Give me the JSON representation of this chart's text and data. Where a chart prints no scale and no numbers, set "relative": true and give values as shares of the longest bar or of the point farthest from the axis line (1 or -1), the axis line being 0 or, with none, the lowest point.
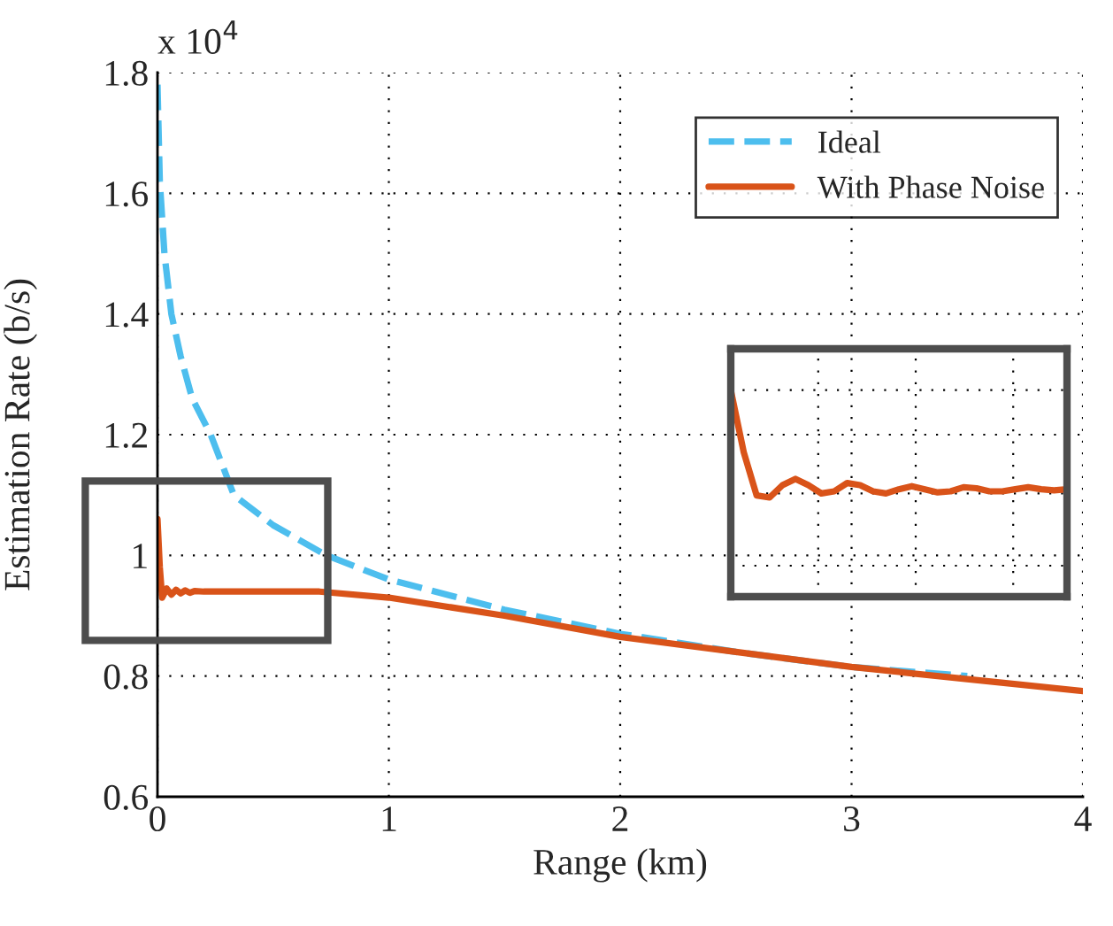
{
  "chart_data": [
    {
      "type": "line",
      "xlabel": "Range (km)",
      "ylabel": "Estimation Rate (b/s)",
      "annotations": [
        "x 10$^{4}$"
      ],
      "xlim": [
        0,
        4
      ],
      "xticks": [
        0,
        1,
        2,
        3,
        4
      ],
      "ylim": [
        0.6,
        1.8
      ],
      "yticks": [
        0.6,
        0.8,
        1,
        1.2,
        1.4,
        1.6,
        1.8
      ],
      "grid": true,
      "legend": "top right",
      "series": [
        {
          "name": "Ideal",
          "color": "#4dbeee",
          "line_style": "dashed",
          "x": [
            0,
            0.01,
            0.03,
            0.06,
            0.1,
            0.15,
            0.23,
            0.33,
            0.5,
            0.73,
            1.0,
            1.5,
            2.0,
            2.5,
            3.0,
            3.5
          ],
          "values": [
            1.78,
            1.62,
            1.5,
            1.4,
            1.33,
            1.26,
            1.2,
            1.1,
            1.05,
            1.0,
            0.96,
            0.91,
            0.87,
            0.84,
            0.815,
            0.8
          ]
        },
        {
          "name": "With Phase Noise",
          "color": "#d95319",
          "line_style": "solid",
          "x": [
            0,
            0.01,
            0.02,
            0.04,
            0.06,
            0.08,
            0.1,
            0.12,
            0.14,
            0.16,
            0.2,
            0.3,
            0.5,
            0.7,
            1.0,
            1.5,
            2.0,
            2.5,
            3.0,
            3.5,
            4.0
          ],
          "values": [
            1.06,
            0.98,
            0.93,
            0.945,
            0.935,
            0.943,
            0.937,
            0.942,
            0.938,
            0.941,
            0.94,
            0.94,
            0.94,
            0.94,
            0.93,
            0.9,
            0.865,
            0.84,
            0.815,
            0.795,
            0.775
          ]
        }
      ]
    },
    {
      "type": "line",
      "relative": true,
      "grid": true,
      "tick_labels": false,
      "categories": [
        null,
        null,
        null,
        null,
        null,
        null,
        null,
        null,
        null,
        null,
        null,
        null,
        null,
        null,
        null,
        null,
        null,
        null,
        null,
        null,
        null,
        null,
        null,
        null,
        null,
        null,
        null
      ],
      "series": [
        {
          "color": "#d95319",
          "values": [
            1.0,
            0.7,
            0.49,
            0.48,
            0.54,
            0.57,
            0.54,
            0.5,
            0.51,
            0.55,
            0.54,
            0.51,
            0.5,
            0.52,
            0.535,
            0.52,
            0.505,
            0.51,
            0.53,
            0.525,
            0.51,
            0.51,
            0.52,
            0.53,
            0.52,
            0.515,
            0.52
          ]
        }
      ]
    }
  ]
}
